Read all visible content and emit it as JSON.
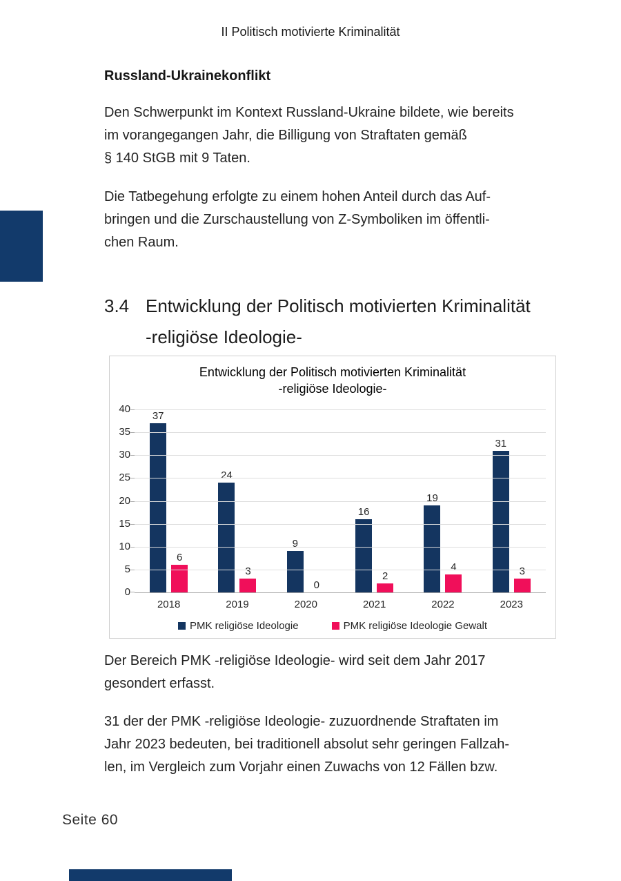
{
  "page": {
    "header_title": "II Politisch motivierte Kriminalität",
    "footer_label": "Seite 60"
  },
  "decor": {
    "accent_color": "#123a6b"
  },
  "russland_section": {
    "heading": "Russland-Ukrainekonflikt",
    "para1_lines": [
      "Den Schwerpunkt im Kontext Russland-Ukraine bildete, wie bereits",
      "im vorangegangen Jahr, die Billigung von Straftaten gemäß",
      "§ 140 StGB mit 9 Taten."
    ],
    "para2_lines": [
      "Die Tatbegehung erfolgte zu einem hohen Anteil durch das Auf-",
      "bringen und die Zurschaustellung von Z-Symboliken im öffentli-",
      "chen Raum."
    ]
  },
  "section_34": {
    "number": "3.4",
    "title_lines": [
      "Entwicklung der Politisch motivierten Kriminalität",
      "-religiöse Ideologie-"
    ]
  },
  "chart_data": {
    "type": "bar",
    "title": "Entwicklung der Politisch motivierten Kriminalität -religiöse Ideologie-",
    "title_lines": [
      "Entwicklung der Politisch motivierten Kriminalität",
      "-religiöse Ideologie-"
    ],
    "categories": [
      "2018",
      "2019",
      "2020",
      "2021",
      "2022",
      "2023"
    ],
    "series": [
      {
        "name": "PMK religiöse Ideologie",
        "color": "#143560",
        "values": [
          37,
          24,
          9,
          16,
          19,
          31
        ]
      },
      {
        "name": "PMK religiöse Ideologie Gewalt",
        "color": "#f00f5a",
        "values": [
          6,
          3,
          0,
          2,
          4,
          3
        ]
      }
    ],
    "xlabel": "",
    "ylabel": "",
    "ylim": [
      0,
      40
    ],
    "ytick_step": 5,
    "grid": true,
    "legend_position": "bottom"
  },
  "after_chart": {
    "para1_lines": [
      "Der Bereich PMK -religiöse Ideologie- wird seit dem Jahr 2017",
      "gesondert erfasst."
    ],
    "para2_lines": [
      "31 der der PMK -religiöse Ideologie- zuzuordnende Straftaten im",
      "Jahr 2023 bedeuten, bei traditionell absolut sehr geringen Fallzah-",
      "len, im Vergleich zum Vorjahr einen Zuwachs von 12 Fällen bzw."
    ]
  }
}
